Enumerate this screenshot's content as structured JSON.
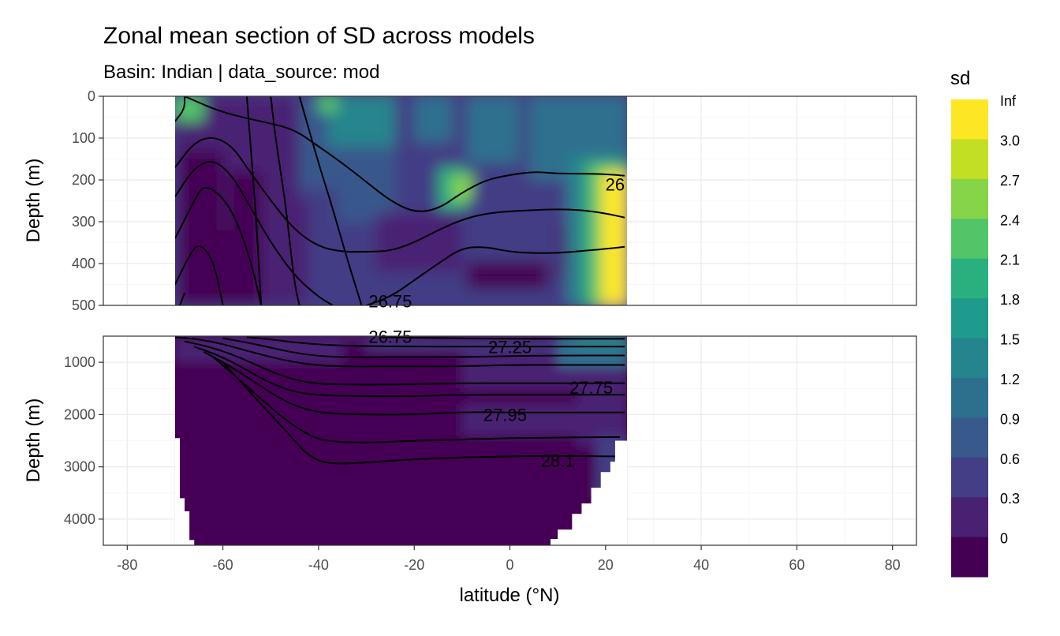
{
  "chart_data": {
    "type": "heatmap",
    "title": "Zonal mean section of SD across models",
    "subtitle": "Basin: Indian | data_source: mod",
    "xlabel": "latitude (°N)",
    "ylabel": "Depth (m)",
    "xlim": [
      -85,
      85
    ],
    "x_ticks": [
      -80,
      -60,
      -40,
      -20,
      0,
      20,
      40,
      60,
      80
    ],
    "grid": true,
    "panels": [
      {
        "name": "upper",
        "ylim": [
          500,
          0
        ],
        "y_ticks": [
          0,
          100,
          200,
          300,
          400,
          500
        ],
        "data_extent": {
          "lat_min": -70,
          "lat_max": 24.5
        }
      },
      {
        "name": "lower",
        "ylim": [
          4500,
          500
        ],
        "y_ticks": [
          1000,
          2000,
          3000,
          4000
        ],
        "data_extent": {
          "lat_min": -70,
          "lat_max": 24.5
        }
      }
    ],
    "legend": {
      "title": "sd",
      "position": "right",
      "labels": [
        "0",
        "0.3",
        "0.6",
        "0.9",
        "1.2",
        "1.5",
        "1.8",
        "2.1",
        "2.4",
        "2.7",
        "3.0",
        "Inf"
      ],
      "colors": [
        "#440154",
        "#482173",
        "#433e85",
        "#38598c",
        "#2d708e",
        "#25858e",
        "#1e9b8a",
        "#2ab07f",
        "#52c569",
        "#86d549",
        "#c2df23",
        "#fde725"
      ]
    },
    "contour_labels": [
      {
        "text": "26",
        "lat": 22,
        "depth": 210,
        "panel": "upper"
      },
      {
        "text": "26.75",
        "lat": -25,
        "depth": 490,
        "panel": "upper"
      },
      {
        "text": "26.75",
        "lat": -25,
        "depth": 510,
        "panel": "lower"
      },
      {
        "text": "27.25",
        "lat": 0,
        "depth": 700,
        "panel": "lower"
      },
      {
        "text": "27.75",
        "lat": 17,
        "depth": 1480,
        "panel": "lower"
      },
      {
        "text": "27.95",
        "lat": -1,
        "depth": 2000,
        "panel": "lower"
      },
      {
        "text": "28.1",
        "lat": 10,
        "depth": 2880,
        "panel": "lower"
      }
    ],
    "contours_upper": [
      [
        [
          -68,
          0
        ],
        [
          -60,
          40
        ],
        [
          -50,
          65
        ],
        [
          -45,
          80
        ],
        [
          -40,
          120
        ],
        [
          -35,
          160
        ],
        [
          -30,
          205
        ],
        [
          -25,
          250
        ],
        [
          -20,
          278
        ],
        [
          -15,
          270
        ],
        [
          -10,
          230
        ],
        [
          -5,
          200
        ],
        [
          0,
          188
        ],
        [
          5,
          180
        ],
        [
          10,
          185
        ],
        [
          15,
          185
        ],
        [
          20,
          186
        ],
        [
          24,
          190
        ]
      ],
      [
        [
          -70,
          170
        ],
        [
          -66,
          110
        ],
        [
          -62,
          95
        ],
        [
          -58,
          120
        ],
        [
          -55,
          170
        ],
        [
          -50,
          250
        ],
        [
          -45,
          320
        ],
        [
          -40,
          360
        ],
        [
          -35,
          372
        ],
        [
          -30,
          372
        ],
        [
          -25,
          370
        ],
        [
          -20,
          350
        ],
        [
          -15,
          320
        ],
        [
          -10,
          295
        ],
        [
          -5,
          280
        ],
        [
          0,
          275
        ],
        [
          5,
          272
        ],
        [
          10,
          270
        ],
        [
          15,
          272
        ],
        [
          20,
          280
        ],
        [
          24,
          290
        ]
      ],
      [
        [
          -70,
          240
        ],
        [
          -66,
          170
        ],
        [
          -62,
          150
        ],
        [
          -58,
          190
        ],
        [
          -55,
          250
        ],
        [
          -50,
          350
        ],
        [
          -45,
          430
        ],
        [
          -40,
          480
        ],
        [
          -37,
          500
        ]
      ],
      [
        [
          -70,
          340
        ],
        [
          -66,
          250
        ],
        [
          -64,
          210
        ],
        [
          -60,
          240
        ],
        [
          -57,
          300
        ],
        [
          -54,
          400
        ],
        [
          -52,
          500
        ]
      ],
      [
        [
          -70,
          450
        ],
        [
          -67,
          380
        ],
        [
          -65,
          350
        ],
        [
          -62,
          390
        ],
        [
          -60,
          500
        ]
      ],
      [
        [
          -69,
          500
        ],
        [
          -68,
          470
        ]
      ],
      [
        [
          -30,
          500
        ],
        [
          -25,
          480
        ],
        [
          -20,
          440
        ],
        [
          -15,
          400
        ],
        [
          -10,
          362
        ],
        [
          -5,
          360
        ],
        [
          0,
          372
        ],
        [
          5,
          375
        ],
        [
          10,
          375
        ],
        [
          15,
          370
        ],
        [
          20,
          365
        ],
        [
          24,
          360
        ]
      ],
      [
        [
          -44,
          0
        ],
        [
          -42,
          80
        ],
        [
          -40,
          160
        ],
        [
          -37,
          270
        ],
        [
          -34,
          390
        ],
        [
          -31,
          500
        ]
      ],
      [
        [
          -50,
          0
        ],
        [
          -49,
          100
        ],
        [
          -47,
          250
        ],
        [
          -46,
          350
        ],
        [
          -45,
          450
        ],
        [
          -44,
          500
        ]
      ],
      [
        [
          -55,
          0
        ],
        [
          -54,
          150
        ],
        [
          -53,
          300
        ],
        [
          -52,
          500
        ]
      ],
      [
        [
          -68,
          0
        ],
        [
          -68,
          30
        ],
        [
          -70,
          60
        ]
      ]
    ],
    "contours_lower": [
      [
        [
          -27,
          520
        ],
        [
          -20,
          530
        ],
        [
          -10,
          540
        ],
        [
          0,
          550
        ],
        [
          10,
          550
        ],
        [
          20,
          550
        ],
        [
          24,
          550
        ]
      ],
      [
        [
          -55,
          520
        ],
        [
          -50,
          560
        ],
        [
          -45,
          620
        ],
        [
          -40,
          660
        ],
        [
          -35,
          680
        ],
        [
          -30,
          690
        ],
        [
          -20,
          700
        ],
        [
          -10,
          700
        ],
        [
          0,
          700
        ],
        [
          10,
          700
        ],
        [
          20,
          700
        ],
        [
          24,
          700
        ]
      ],
      [
        [
          -60,
          540
        ],
        [
          -55,
          620
        ],
        [
          -50,
          720
        ],
        [
          -45,
          820
        ],
        [
          -40,
          880
        ],
        [
          -35,
          900
        ],
        [
          -30,
          905
        ],
        [
          -20,
          900
        ],
        [
          -10,
          900
        ],
        [
          0,
          880
        ],
        [
          10,
          870
        ],
        [
          20,
          870
        ],
        [
          24,
          870
        ]
      ],
      [
        [
          -70,
          520
        ],
        [
          -65,
          560
        ],
        [
          -60,
          650
        ],
        [
          -55,
          780
        ],
        [
          -50,
          900
        ],
        [
          -45,
          1000
        ],
        [
          -40,
          1060
        ],
        [
          -35,
          1080
        ],
        [
          -20,
          1080
        ],
        [
          -10,
          1080
        ],
        [
          0,
          1050
        ],
        [
          10,
          1050
        ],
        [
          24,
          1050
        ]
      ],
      [
        [
          -68,
          600
        ],
        [
          -63,
          700
        ],
        [
          -58,
          850
        ],
        [
          -53,
          1050
        ],
        [
          -48,
          1250
        ],
        [
          -43,
          1380
        ],
        [
          -38,
          1420
        ],
        [
          -30,
          1430
        ],
        [
          -20,
          1420
        ],
        [
          -10,
          1400
        ],
        [
          0,
          1400
        ],
        [
          10,
          1400
        ],
        [
          24,
          1400
        ]
      ],
      [
        [
          -66,
          700
        ],
        [
          -60,
          900
        ],
        [
          -55,
          1150
        ],
        [
          -50,
          1400
        ],
        [
          -45,
          1570
        ],
        [
          -40,
          1630
        ],
        [
          -30,
          1650
        ],
        [
          -20,
          1650
        ],
        [
          -10,
          1620
        ],
        [
          0,
          1620
        ],
        [
          10,
          1620
        ],
        [
          24,
          1620
        ]
      ],
      [
        [
          -64,
          800
        ],
        [
          -58,
          1100
        ],
        [
          -53,
          1400
        ],
        [
          -48,
          1700
        ],
        [
          -43,
          1900
        ],
        [
          -38,
          1980
        ],
        [
          -30,
          2000
        ],
        [
          -20,
          2000
        ],
        [
          -10,
          1950
        ],
        [
          0,
          1960
        ],
        [
          10,
          1960
        ],
        [
          24,
          1960
        ]
      ],
      [
        [
          -62,
          900
        ],
        [
          -57,
          1300
        ],
        [
          -52,
          1700
        ],
        [
          -47,
          2100
        ],
        [
          -42,
          2400
        ],
        [
          -38,
          2520
        ],
        [
          -30,
          2540
        ],
        [
          -20,
          2500
        ],
        [
          -10,
          2480
        ],
        [
          0,
          2450
        ],
        [
          10,
          2440
        ],
        [
          20,
          2430
        ],
        [
          23,
          2430
        ]
      ],
      [
        [
          -60,
          1000
        ],
        [
          -55,
          1500
        ],
        [
          -50,
          2000
        ],
        [
          -45,
          2500
        ],
        [
          -42,
          2800
        ],
        [
          -38,
          2950
        ],
        [
          -30,
          2920
        ],
        [
          -20,
          2850
        ],
        [
          -10,
          2820
        ],
        [
          0,
          2800
        ],
        [
          10,
          2790
        ],
        [
          20,
          2800
        ],
        [
          22,
          2800
        ]
      ]
    ]
  }
}
